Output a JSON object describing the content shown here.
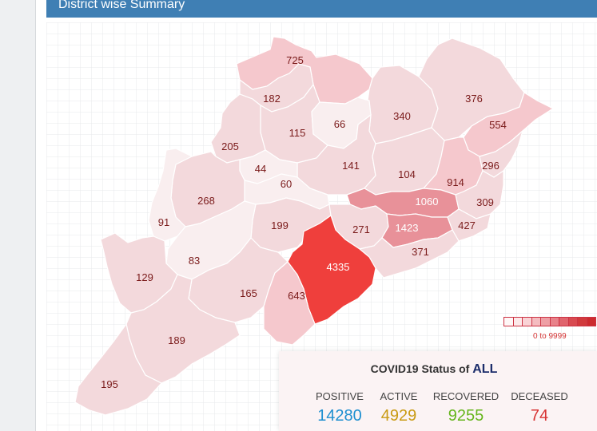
{
  "panel": {
    "title": "District wise Summary"
  },
  "legend": {
    "range_label": "0 to 9999",
    "colors": [
      "#fff7f7",
      "#fde9ea",
      "#f9d3d6",
      "#f4bcc0",
      "#ee9fa5",
      "#e8828a",
      "#e0646d",
      "#d84a50",
      "#d13a3c",
      "#cc2b2e"
    ]
  },
  "status": {
    "title_prefix": "COVID19 Status of",
    "title_scope": "ALL",
    "positive_label": "POSITIVE",
    "positive_value": "14280",
    "positive_color": "#1d8fd0",
    "active_label": "ACTIVE",
    "active_value": "4929",
    "active_color": "#c99a12",
    "recovered_label": "RECOVERED",
    "recovered_value": "9255",
    "recovered_color": "#65b51b",
    "deceased_label": "DECEASED",
    "deceased_value": "74",
    "deceased_color": "#d83434"
  },
  "districts": [
    {
      "id": "d725",
      "value": "725",
      "fill": "#f5c8cd"
    },
    {
      "id": "d182",
      "value": "182",
      "fill": "#f3d9dc"
    },
    {
      "id": "d340",
      "value": "340",
      "fill": "#f3d9dc"
    },
    {
      "id": "d376",
      "value": "376",
      "fill": "#f3d9dc"
    },
    {
      "id": "d115",
      "value": "115",
      "fill": "#f3d9dc"
    },
    {
      "id": "d66",
      "value": "66",
      "fill": "#f9eeef"
    },
    {
      "id": "d554",
      "value": "554",
      "fill": "#f5c8cd"
    },
    {
      "id": "d205",
      "value": "205",
      "fill": "#f3d9dc"
    },
    {
      "id": "d141",
      "value": "141",
      "fill": "#f3d9dc"
    },
    {
      "id": "d44",
      "value": "44",
      "fill": "#f9eeef"
    },
    {
      "id": "d104",
      "value": "104",
      "fill": "#f3d9dc"
    },
    {
      "id": "d914",
      "value": "914",
      "fill": "#f5c8cd"
    },
    {
      "id": "d296",
      "value": "296",
      "fill": "#f3d9dc"
    },
    {
      "id": "d60",
      "value": "60",
      "fill": "#f9eeef"
    },
    {
      "id": "d268",
      "value": "268",
      "fill": "#f3d9dc"
    },
    {
      "id": "d1060",
      "value": "1060",
      "fill": "#e89199"
    },
    {
      "id": "d309",
      "value": "309",
      "fill": "#f3d9dc"
    },
    {
      "id": "d91",
      "value": "91",
      "fill": "#f9eeef"
    },
    {
      "id": "d199",
      "value": "199",
      "fill": "#f3d9dc"
    },
    {
      "id": "d271",
      "value": "271",
      "fill": "#f3d9dc"
    },
    {
      "id": "d1423",
      "value": "1423",
      "fill": "#e89199"
    },
    {
      "id": "d427",
      "value": "427",
      "fill": "#f3d9dc"
    },
    {
      "id": "d83",
      "value": "83",
      "fill": "#f9eeef"
    },
    {
      "id": "d371",
      "value": "371",
      "fill": "#f3d9dc"
    },
    {
      "id": "d4335",
      "value": "4335",
      "fill": "#ef3f3c"
    },
    {
      "id": "d129",
      "value": "129",
      "fill": "#f3d9dc"
    },
    {
      "id": "d165",
      "value": "165",
      "fill": "#f3d9dc"
    },
    {
      "id": "d643",
      "value": "643",
      "fill": "#f5c8cd"
    },
    {
      "id": "d189",
      "value": "189",
      "fill": "#f3d9dc"
    },
    {
      "id": "d195",
      "value": "195",
      "fill": "#f3d9dc"
    }
  ]
}
